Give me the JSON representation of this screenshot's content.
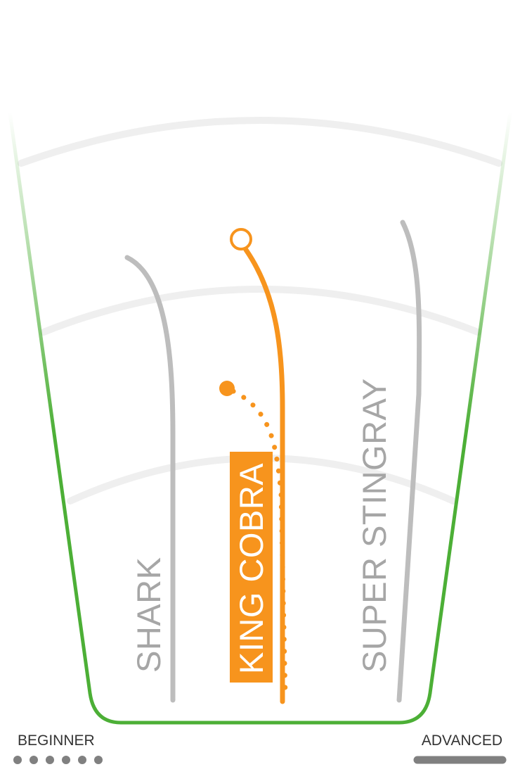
{
  "models": [
    {
      "name": "SHARK",
      "highlighted": false,
      "color": "#bdbdbd"
    },
    {
      "name": "KING COBRA",
      "highlighted": true,
      "color": "#f7941d"
    },
    {
      "name": "SUPER STINGRAY",
      "highlighted": false,
      "color": "#bdbdbd"
    }
  ],
  "scale": {
    "start_label": "BEGINNER",
    "end_label": "ADVANCED",
    "label_color": "#333333",
    "indicator_color": "#808080"
  },
  "colors": {
    "container": "#4caf36",
    "arcs": "#efefef",
    "highlight": "#f7941d",
    "highlight_text": "#ffffff",
    "muted_text": "#a6a6a6"
  }
}
